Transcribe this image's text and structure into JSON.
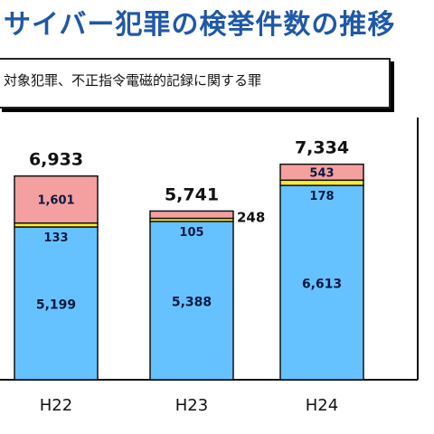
{
  "title": "サイバー犯罪の検挙件数の推移",
  "legend_text": "対象犯罪、不正指令電磁的記録に関する罪",
  "colors": {
    "bottom": "#66c2ff",
    "middle": "#ffee22",
    "top": "#f4a0a0",
    "frame": "#111111"
  },
  "chart_data": {
    "type": "bar",
    "stacked": true,
    "categories": [
      "H22",
      "H23",
      "H24"
    ],
    "series": [
      {
        "values": [
          5199,
          5388,
          6613
        ]
      },
      {
        "values": [
          133,
          105,
          178
        ]
      },
      {
        "values": [
          1601,
          248,
          543
        ]
      }
    ],
    "series_labels": [
      [
        "5,199",
        "5,388",
        "6,613"
      ],
      [
        "133",
        "105",
        "178"
      ],
      [
        "1,601",
        "248",
        "543"
      ]
    ],
    "totals": [
      6933,
      5741,
      7334
    ],
    "total_labels": [
      "6,933",
      "5,741",
      "7,334"
    ],
    "ylim": [
      0,
      8000
    ],
    "grid": false
  }
}
